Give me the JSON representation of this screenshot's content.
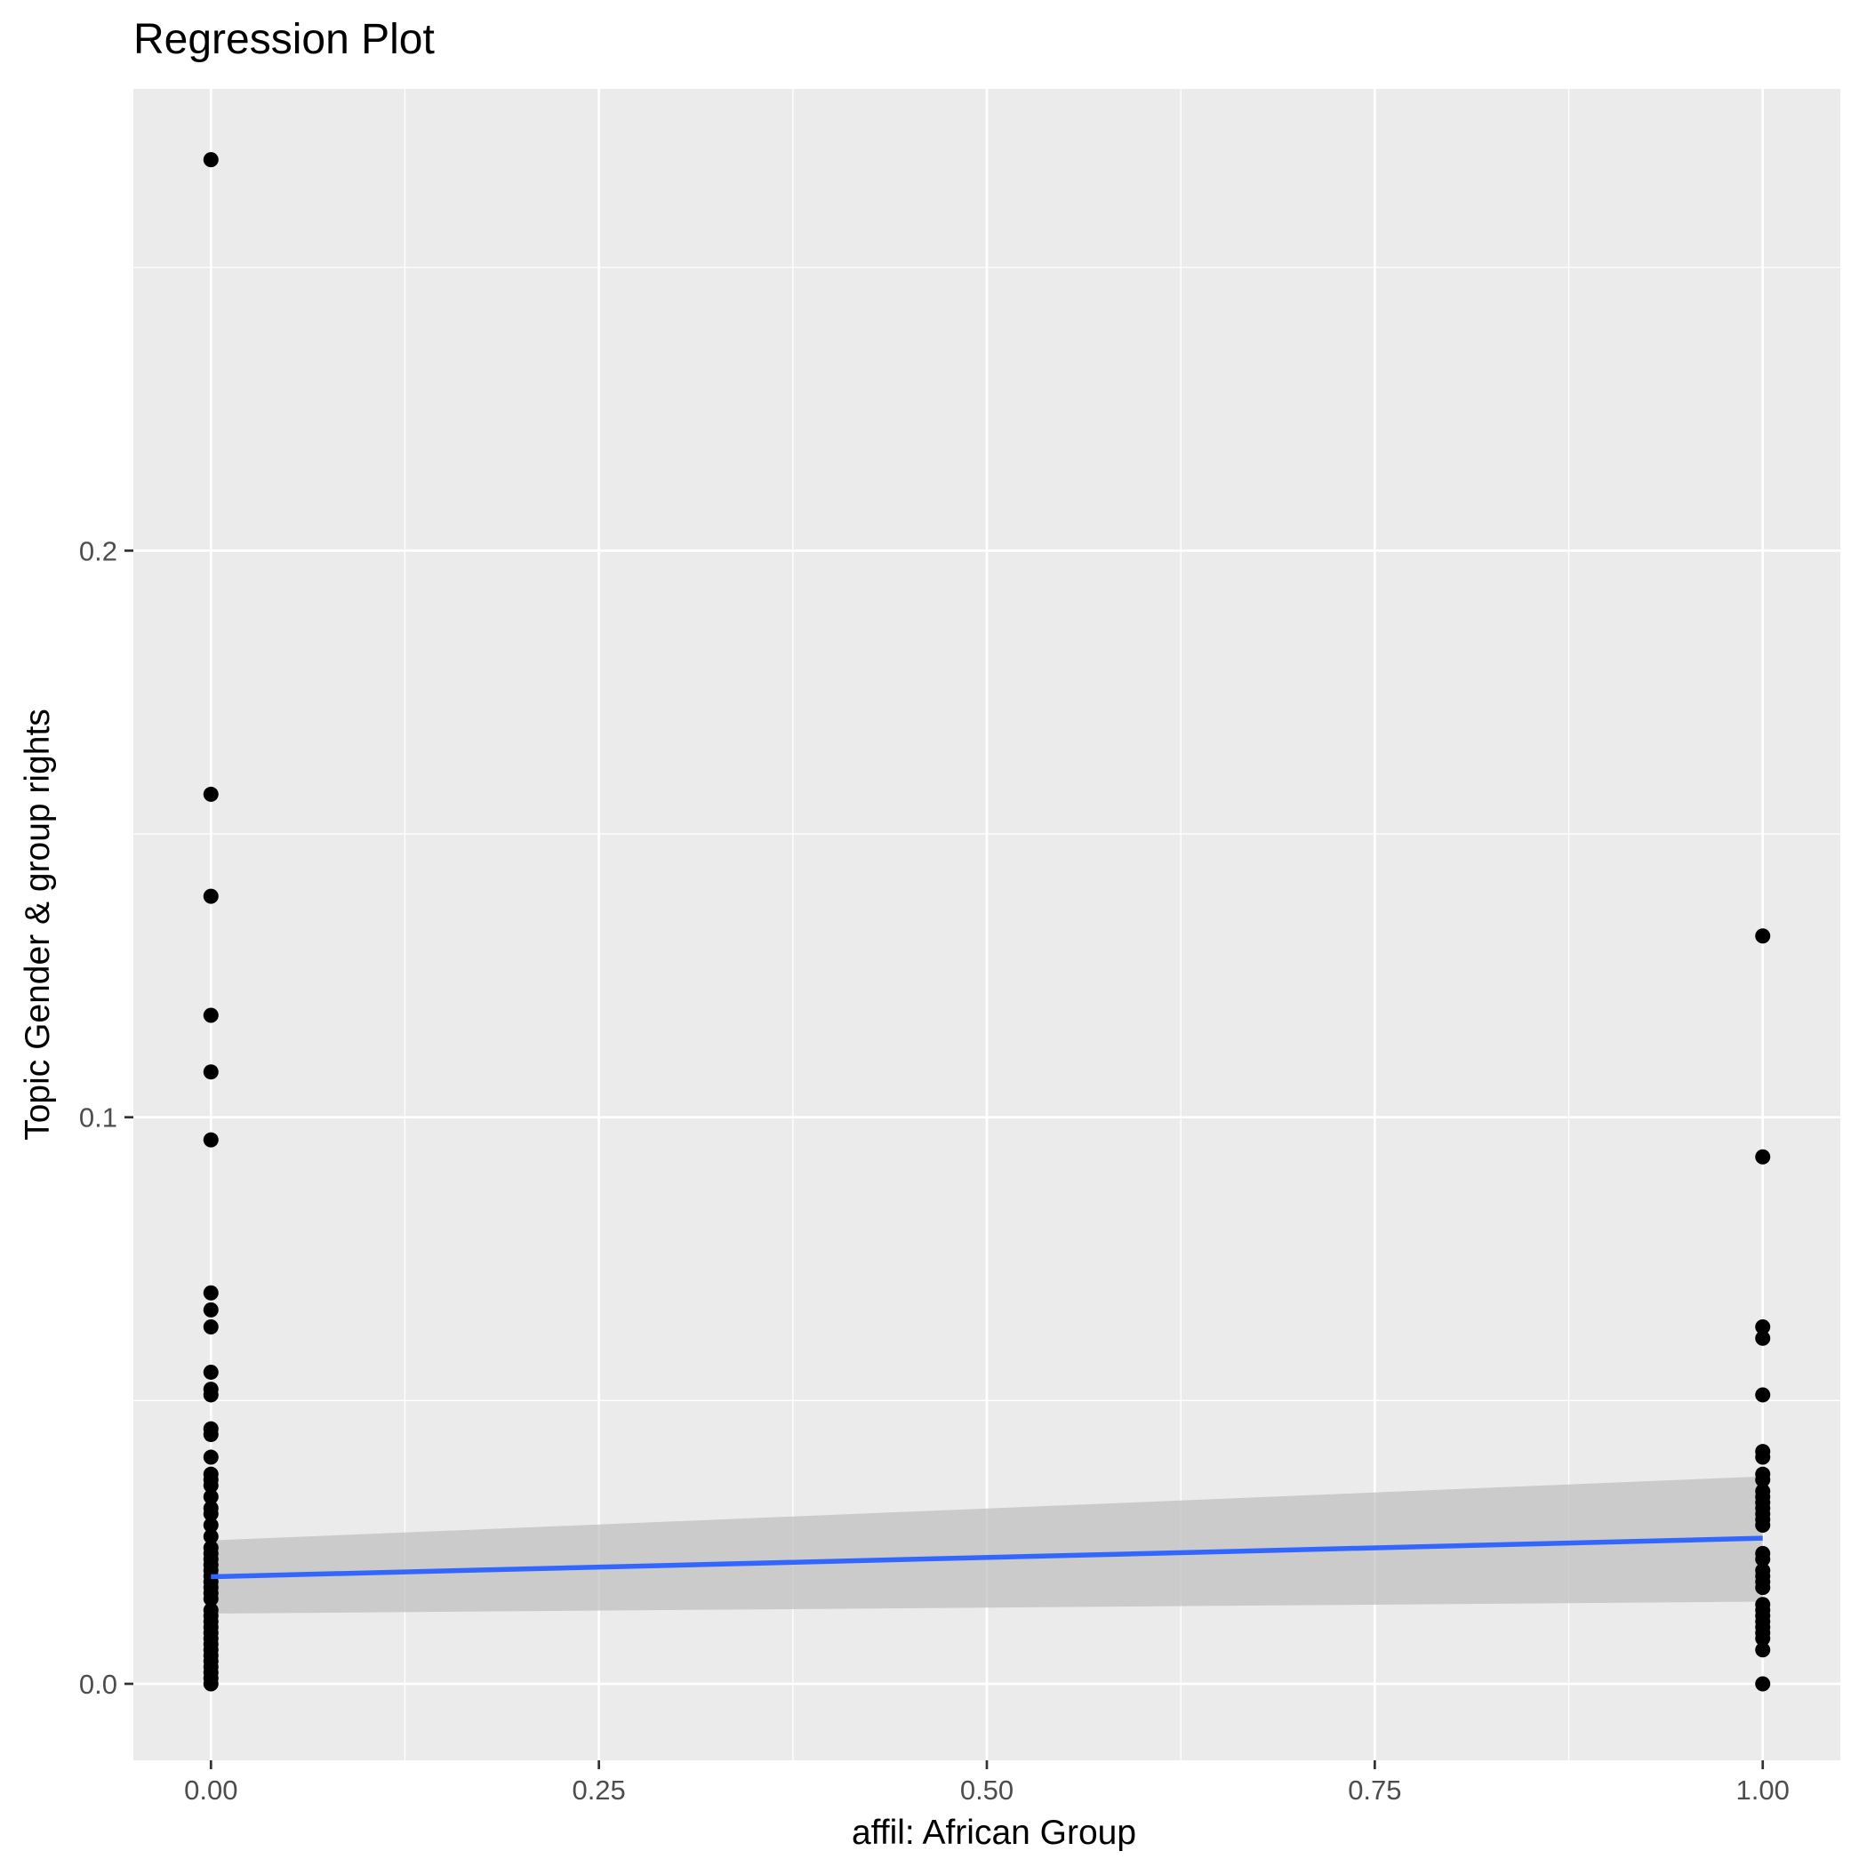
{
  "chart_data": {
    "type": "scatter",
    "title": "Regression Plot",
    "xlabel": "affil: African Group",
    "ylabel": "Topic Gender & group rights",
    "xlim": [
      -0.05,
      1.05
    ],
    "ylim": [
      -0.0135,
      0.2815
    ],
    "x_ticks": [
      0.0,
      0.25,
      0.5,
      0.75,
      1.0
    ],
    "x_tick_labels": [
      "0.00",
      "0.25",
      "0.50",
      "0.75",
      "1.00"
    ],
    "y_ticks": [
      0.0,
      0.1,
      0.2
    ],
    "y_tick_labels": [
      "0.0",
      "0.1",
      "0.2"
    ],
    "grid": true,
    "colors": {
      "panel_background": "#ebebeb",
      "grid_major": "#ffffff",
      "points": "#000000",
      "fit_line": "#3366ff",
      "confidence_band": "#bdbdbd"
    },
    "points": {
      "x0": [
        0.269,
        0.157,
        0.139,
        0.118,
        0.108,
        0.096,
        0.069,
        0.066,
        0.063,
        0.055,
        0.052,
        0.051,
        0.045,
        0.044,
        0.04,
        0.037,
        0.036,
        0.035,
        0.033,
        0.031,
        0.03,
        0.028,
        0.026,
        0.024,
        0.023,
        0.022,
        0.021,
        0.02,
        0.019,
        0.018,
        0.017,
        0.016,
        0.015,
        0.013,
        0.012,
        0.011,
        0.01,
        0.009,
        0.008,
        0.007,
        0.006,
        0.005,
        0.004,
        0.003,
        0.002,
        0.001,
        0.0
      ],
      "x1": [
        0.132,
        0.093,
        0.063,
        0.061,
        0.051,
        0.041,
        0.04,
        0.037,
        0.036,
        0.034,
        0.033,
        0.032,
        0.031,
        0.03,
        0.029,
        0.028,
        0.023,
        0.022,
        0.02,
        0.019,
        0.018,
        0.017,
        0.014,
        0.013,
        0.012,
        0.011,
        0.01,
        0.009,
        0.008,
        0.006,
        0.0
      ]
    },
    "regression": {
      "x": [
        0,
        1
      ],
      "y": [
        0.0189,
        0.0257
      ],
      "ci_lower": [
        0.0124,
        0.0145
      ],
      "ci_upper": [
        0.0253,
        0.0366
      ]
    }
  }
}
